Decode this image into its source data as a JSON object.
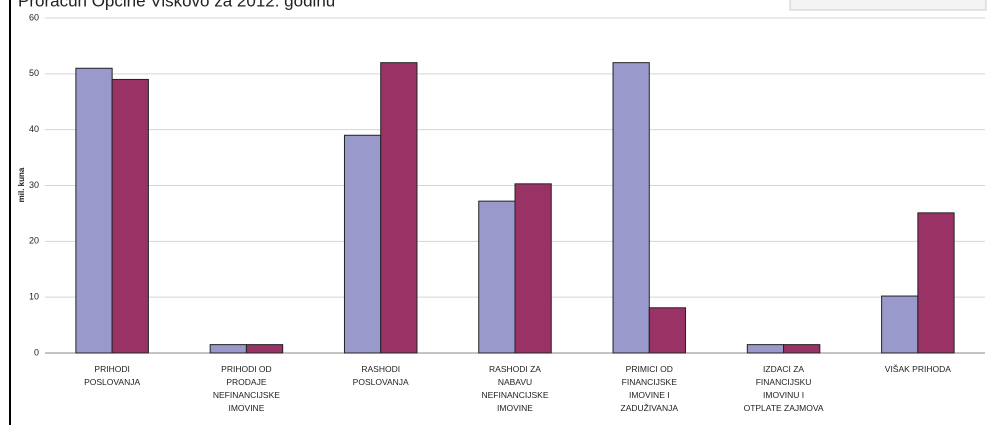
{
  "chart_data": {
    "type": "bar",
    "title": "Proračun Općine Viškovo za 2012. godinu",
    "y_label": "mil. kuna",
    "categories": [
      "PRIHODI POSLOVANJA",
      "PRIHODI OD PRODAJE NEFINANCIJSKE IMOVINE",
      "RASHODI POSLOVANJA",
      "RASHODI ZA NABAVU NEFINANCIJSKE IMOVINE",
      "PRIMICI OD FINANCIJSKE IMOVINE I ZADUŽIVANJA",
      "IZDACI ZA FINANCIJSKU IMOVINU I OTPLATE ZAJMOVA",
      "VIŠAK PRIHODA"
    ],
    "series": [
      {
        "color": "#9999cc",
        "values": [
          51,
          1.5,
          39,
          27.2,
          52,
          1.5,
          10.2
        ]
      },
      {
        "color": "#993366",
        "values": [
          49,
          1.5,
          52,
          30.3,
          8.1,
          1.5,
          25.1
        ]
      }
    ],
    "ylim": [
      0,
      60
    ],
    "yticks": [
      0,
      10,
      20,
      30,
      40,
      50,
      60
    ],
    "grid": true
  }
}
